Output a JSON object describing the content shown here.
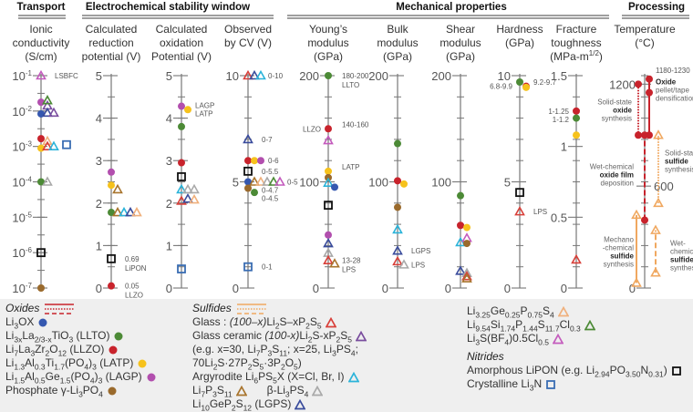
{
  "groups": [
    {
      "label": "Transport"
    },
    {
      "label": "Electrochemical stability window"
    },
    {
      "label": "Mechanical properties"
    },
    {
      "label": "Processing"
    }
  ],
  "materials": {
    "li3ox": {
      "shape": "circle",
      "color": "#3558b0"
    },
    "llto": {
      "shape": "circle",
      "color": "#4c8a36"
    },
    "llzo": {
      "shape": "circle",
      "color": "#c8232c"
    },
    "latp": {
      "shape": "circle",
      "color": "#f6c21c"
    },
    "lagp": {
      "shape": "circle",
      "color": "#b24fae"
    },
    "phosphate": {
      "shape": "circle",
      "color": "#9a6a2c"
    },
    "glass": {
      "shape": "triangle",
      "color": "#d8403a"
    },
    "glassceramic": {
      "shape": "triangle",
      "color": "#7a4d9e"
    },
    "argyrodite": {
      "shape": "triangle",
      "color": "#2ab3d9"
    },
    "li7p3s11": {
      "shape": "triangle",
      "color": "#a8742c"
    },
    "beta": {
      "shape": "triangle",
      "color": "#a9a9a9"
    },
    "lgps": {
      "shape": "triangle",
      "color": "#3a4c9c"
    },
    "ligeps": {
      "shape": "triangle",
      "color": "#f0b07c"
    },
    "lisipscl": {
      "shape": "triangle",
      "color": "#4c8a36"
    },
    "lsbfc": {
      "shape": "triangle",
      "color": "#c45bbd"
    },
    "lipon": {
      "shape": "square",
      "color": "#111111"
    },
    "li3n": {
      "shape": "square",
      "color": "#3a6db3"
    }
  },
  "chart_data": [
    {
      "type": "scatter",
      "title": "Ionic conductivity (S/cm)",
      "title_lines": [
        "Ionic",
        "conductivity",
        "(S/cm)"
      ],
      "scale": "log",
      "ylim": [
        -7,
        -1
      ],
      "tick_labels": [
        {
          "v": -1,
          "t": "10^-1"
        },
        {
          "v": -2,
          "t": "10^-2"
        },
        {
          "v": -3,
          "t": "10^-3"
        },
        {
          "v": -4,
          "t": "10^-4"
        },
        {
          "v": -5,
          "t": "10^-5"
        },
        {
          "v": -6,
          "t": "10^-6"
        },
        {
          "v": -7,
          "t": "10^-7"
        }
      ],
      "points": [
        {
          "m": "lsbfc",
          "v": -1.0,
          "label": "LSBFC"
        },
        {
          "m": "lagp",
          "v": -1.75
        },
        {
          "m": "glassceramic",
          "v": -1.85
        },
        {
          "m": "lisipscl",
          "v": -1.7
        },
        {
          "m": "li3ox",
          "v": -2.08
        },
        {
          "m": "lgps",
          "v": -2.05
        },
        {
          "m": "glassceramic",
          "v": -2.05
        },
        {
          "m": "llzo",
          "v": -2.78
        },
        {
          "m": "ligeps",
          "v": -2.85
        },
        {
          "m": "latp",
          "v": -3.05
        },
        {
          "m": "glass",
          "v": -3.0
        },
        {
          "m": "argyrodite",
          "v": -3.0
        },
        {
          "m": "li3n",
          "v": -2.95
        },
        {
          "m": "llto",
          "v": -4.0
        },
        {
          "m": "beta",
          "v": -4.0
        },
        {
          "m": "lipon",
          "v": -6.0
        },
        {
          "m": "phosphate",
          "v": -7.0
        }
      ]
    },
    {
      "type": "scatter",
      "title": "Calculated reduction potential (V)",
      "title_lines": [
        "Calculated",
        "reduction",
        "potential (V)"
      ],
      "ylim": [
        0,
        5
      ],
      "tick_labels": [
        {
          "v": 5,
          "t": "5"
        },
        {
          "v": 4,
          "t": "4"
        },
        {
          "v": 3,
          "t": "3"
        },
        {
          "v": 2,
          "t": "2"
        },
        {
          "v": 1,
          "t": "1"
        },
        {
          "v": 0,
          "t": "0"
        }
      ],
      "points": [
        {
          "m": "lagp",
          "v": 2.73
        },
        {
          "m": "latp",
          "v": 2.42
        },
        {
          "m": "li7p3s11",
          "v": 2.32
        },
        {
          "m": "llto",
          "v": 1.78
        },
        {
          "m": "li7p3s11",
          "v": 1.78
        },
        {
          "m": "argyrodite",
          "v": 1.78
        },
        {
          "m": "lgps",
          "v": 1.78
        },
        {
          "m": "ligeps",
          "v": 1.78
        },
        {
          "m": "lipon",
          "v": 0.69,
          "label": "0.69",
          "label2": "LiPON"
        },
        {
          "m": "llzo",
          "v": 0.05,
          "label": "0.05",
          "label2": "LLZO"
        }
      ]
    },
    {
      "type": "scatter",
      "title": "Calculated oxidation Potential (V)",
      "title_lines": [
        "Calculated",
        "oxidation",
        "Potential (V)"
      ],
      "ylim": [
        0,
        5
      ],
      "tick_labels": [
        {
          "v": 5,
          "t": "5"
        },
        {
          "v": 4,
          "t": "4"
        },
        {
          "v": 3,
          "t": "3"
        },
        {
          "v": 2,
          "t": "2"
        },
        {
          "v": 1,
          "t": "1"
        },
        {
          "v": 0,
          "t": "0"
        }
      ],
      "points": [
        {
          "m": "lagp",
          "v": 4.28,
          "label": "LAGP",
          "labeldy": -1
        },
        {
          "m": "latp",
          "v": 4.2,
          "label": "LATP",
          "labeldy": 1
        },
        {
          "m": "llto",
          "v": 3.8
        },
        {
          "m": "llzo",
          "v": 2.95
        },
        {
          "m": "lipon",
          "v": 2.62
        },
        {
          "m": "argyrodite",
          "v": 2.32
        },
        {
          "m": "beta",
          "v": 2.32
        },
        {
          "m": "beta",
          "v": 2.32
        },
        {
          "m": "glass",
          "v": 2.05
        },
        {
          "m": "lgps",
          "v": 2.1
        },
        {
          "m": "ligeps",
          "v": 2.08
        },
        {
          "m": "li3n",
          "v": 0.45
        }
      ]
    },
    {
      "type": "scatter",
      "title": "Observed by CV (V)",
      "title_lines": [
        "Observed",
        "by CV (V)"
      ],
      "ylim": [
        0,
        10
      ],
      "tick_labels": [
        {
          "v": 10,
          "t": "10"
        },
        {
          "v": 5,
          "t": "5"
        },
        {
          "v": 0,
          "t": "0"
        }
      ],
      "points": [
        {
          "m": "glass",
          "v": 10
        },
        {
          "m": "lgps",
          "v": 10
        },
        {
          "m": "argyrodite",
          "v": 10,
          "label": "0-10"
        },
        {
          "m": "lgps",
          "v": 7,
          "label": "0-7"
        },
        {
          "m": "llzo",
          "v": 6
        },
        {
          "m": "latp",
          "v": 6
        },
        {
          "m": "lagp",
          "v": 6,
          "label": "0-6"
        },
        {
          "m": "lipon",
          "v": 5.5,
          "label": "0-5.5"
        },
        {
          "m": "li3ox",
          "v": 5
        },
        {
          "m": "li7p3s11",
          "v": 5
        },
        {
          "m": "ligeps",
          "v": 5
        },
        {
          "m": "beta",
          "v": 5
        },
        {
          "m": "lisipscl",
          "v": 5
        },
        {
          "m": "lsbfc",
          "v": 5,
          "label": "0-5"
        },
        {
          "m": "phosphate",
          "v": 4.7,
          "label": "0-4.7"
        },
        {
          "m": "llto",
          "v": 4.5,
          "label": "0-4.5"
        },
        {
          "m": "li3n",
          "v": 1,
          "label": "0-1"
        }
      ]
    },
    {
      "type": "scatter",
      "title": "Young's modulus (GPa)",
      "title_lines": [
        "Young’s",
        "modulus",
        "(GPa)"
      ],
      "ylim": [
        0,
        200
      ],
      "tick_labels": [
        {
          "v": 200,
          "t": "200"
        },
        {
          "v": 100,
          "t": "100"
        },
        {
          "v": 0,
          "t": "0"
        }
      ],
      "points": [
        {
          "m": "llto",
          "v": 200,
          "label": "180-200",
          "label2": "LLTO"
        },
        {
          "m": "llzo",
          "v": 150,
          "label": "140-160",
          "labeldy": -5,
          "label_left": "LLZO"
        },
        {
          "m": "lsbfc",
          "v": 139
        },
        {
          "m": "latp",
          "v": 110,
          "label": "LATP",
          "labeldy": -5
        },
        {
          "m": "phosphate",
          "v": 104
        },
        {
          "m": "argyrodite",
          "v": 99
        },
        {
          "m": "li3ox",
          "v": 95
        },
        {
          "m": "lipon",
          "v": 78
        },
        {
          "m": "lagp",
          "v": 50
        },
        {
          "m": "lgps",
          "v": 42
        },
        {
          "m": "beta",
          "v": 33
        },
        {
          "m": "glass",
          "v": 26,
          "label": "13-28",
          "label2": "LPS"
        },
        {
          "m": "li7p3s11",
          "v": 23
        }
      ]
    },
    {
      "type": "scatter",
      "title": "Bulk modulus (GPa)",
      "title_lines": [
        "Bulk",
        "modulus",
        "(GPa)"
      ],
      "ylim": [
        0,
        200
      ],
      "tick_labels": [
        {
          "v": 200,
          "t": "200"
        },
        {
          "v": 100,
          "t": "100"
        },
        {
          "v": 0,
          "t": "0"
        }
      ],
      "points": [
        {
          "m": "llto",
          "v": 136
        },
        {
          "m": "llzo",
          "v": 101
        },
        {
          "m": "latp",
          "v": 98
        },
        {
          "m": "phosphate",
          "v": 76
        },
        {
          "m": "argyrodite",
          "v": 55
        },
        {
          "m": "lgps",
          "v": 35,
          "label": "LGPS"
        },
        {
          "m": "glass",
          "v": 25
        },
        {
          "m": "beta",
          "v": 22,
          "label": "LPS"
        }
      ]
    },
    {
      "type": "scatter",
      "title": "Shear modulus (GPa)",
      "title_lines": [
        "Shear",
        "modulus",
        "(GPa)"
      ],
      "ylim": [
        0,
        200
      ],
      "tick_labels": [
        {
          "v": 200,
          "t": "200"
        },
        {
          "v": 100,
          "t": "100"
        },
        {
          "v": 0,
          "t": "0"
        }
      ],
      "points": [
        {
          "m": "llto",
          "v": 87
        },
        {
          "m": "llzo",
          "v": 59
        },
        {
          "m": "latp",
          "v": 57
        },
        {
          "m": "argyrodite",
          "v": 43
        },
        {
          "m": "lsbfc",
          "v": 47
        },
        {
          "m": "phosphate",
          "v": 42
        },
        {
          "m": "lgps",
          "v": 16
        },
        {
          "m": "beta",
          "v": 14
        },
        {
          "m": "glass",
          "v": 11
        },
        {
          "m": "li7p3s11",
          "v": 9
        }
      ]
    },
    {
      "type": "scatter",
      "title": "Hardness (GPa)",
      "title_lines": [
        "Hardness",
        "(GPa)"
      ],
      "ylim": [
        0,
        10
      ],
      "tick_labels": [
        {
          "v": 10,
          "t": "10"
        },
        {
          "v": 5,
          "t": "5"
        },
        {
          "v": 0,
          "t": "0"
        }
      ],
      "points": [
        {
          "m": "llto",
          "v": 9.7,
          "label": "9.2-9.7"
        },
        {
          "m": "llzo",
          "v": 9.5,
          "label_left": "6.8-9.9"
        },
        {
          "m": "latp",
          "v": 9.45
        },
        {
          "m": "lipon",
          "v": 4.5
        },
        {
          "m": "glass",
          "v": 3.6,
          "label": "LPS"
        }
      ]
    },
    {
      "type": "scatter",
      "title": "Fracture toughness (MPa-m^1/2)",
      "title_lines": [
        "Fracture",
        "toughness",
        "(MPa-m^1/2)"
      ],
      "ylim": [
        0,
        1.5
      ],
      "tick_labels": [
        {
          "v": 1.5,
          "t": "1.5"
        },
        {
          "v": 1,
          "t": "1"
        },
        {
          "v": 0.5,
          "t": "0.5"
        },
        {
          "v": 0,
          "t": "0"
        }
      ],
      "points": [
        {
          "m": "llzo",
          "v": 1.25,
          "label_left": "1-1.25"
        },
        {
          "m": "llto",
          "v": 1.2,
          "label_left": "1-1.2"
        },
        {
          "m": "latp",
          "v": 1.08
        },
        {
          "m": "glass",
          "v": 0.2
        }
      ]
    },
    {
      "type": "range",
      "title": "Temperature (°C)",
      "title_lines": [
        "Temperature",
        "(°C)"
      ],
      "ylim": [
        0,
        1250
      ],
      "tick_labels": [
        {
          "v": 1200,
          "t": "1200"
        },
        {
          "v": 600,
          "t": "600",
          "side": "right"
        },
        {
          "v": 0,
          "t": "0"
        }
      ],
      "annotation": "1180-1230",
      "ranges": [
        {
          "family": "oxide",
          "style": "dotted",
          "from": 900,
          "to": 1200,
          "lines": [
            "Solid-state",
            "*oxide",
            "synthesis"
          ]
        },
        {
          "family": "oxide",
          "style": "solid",
          "from": 900,
          "to": 1230,
          "mid": 1150,
          "lines": [
            "*Oxide",
            "pellet/tape",
            "densification"
          ]
        },
        {
          "family": "oxide",
          "style": "dashed",
          "from": 400,
          "to": 900,
          "lines": [
            "Wet-chemical",
            "*oxide film",
            "deposition"
          ]
        },
        {
          "family": "sulfide",
          "style": "dotted",
          "from": 500,
          "to": 900,
          "lines": [
            "Solid-state",
            "*sulfide",
            "synthesis"
          ]
        },
        {
          "family": "sulfide",
          "style": "solid",
          "from": 30,
          "to": 430,
          "lines": [
            "Mechano",
            "-chemical",
            "*sulfide",
            "synthesis"
          ]
        },
        {
          "family": "sulfide",
          "style": "dashed",
          "from": 90,
          "to": 340,
          "lines": [
            "Wet-",
            "chemical",
            "*sulfide",
            "synthesis"
          ]
        }
      ],
      "family_colors": {
        "oxide": "#c8232c",
        "sulfide": "#f0a860"
      }
    }
  ],
  "legend": {
    "oxides": {
      "title": "Oxides",
      "items": [
        {
          "m": "li3ox",
          "text": "Li_{3}OX"
        },
        {
          "m": "llto",
          "text": "Li_{3x}La_{2/3-x}TiO_{3} (LLTO)"
        },
        {
          "m": "llzo",
          "text": "Li_{7}La_{3}Zr_{2}O_{12} (LLZO)"
        },
        {
          "m": "latp",
          "text": "Li_{1.3}Al_{0.3}Ti_{1.7}(PO_{4})_{3} (LATP)"
        },
        {
          "m": "lagp",
          "text": "Li_{1.5}Al_{0.5}Ge_{1.5}(PO_{4})_{3} (LAGP)"
        },
        {
          "m": "phosphate",
          "text": "Phosphate γ-Li_{3}PO_{4}"
        }
      ]
    },
    "sulfides": {
      "title": "Sulfides",
      "items": [
        {
          "m": "glass",
          "text": "Glass : *(100–x)*Li_{2}S–xP_{2}S_{5}"
        },
        {
          "m": "glassceramic",
          "text": "Glass ceramic *(100-x)*Li_{2}S-xP_{2}S_{5}"
        },
        {
          "m": "",
          "text": "(e.g. x=30, Li_{7}P_{3}S_{11}; x=25, Li_{3}PS_{4}; 70Li_{2}S·27P_{2}S_{5}·3P_{2}O_{5})"
        },
        {
          "m": "argyrodite",
          "text": "Argyrodite Li_{6}PS_{5}X (X=Cl, Br, I)"
        },
        {
          "m": "li7p3s11",
          "text": "Li_{7}P_{3}S_{11}",
          "m2": "beta",
          "text2": "β-Li_{3}PS_{4}"
        },
        {
          "m": "lgps",
          "text": "Li_{10}GeP_{2}S_{12} (LGPS)"
        }
      ]
    },
    "others": {
      "items": [
        {
          "m": "ligeps",
          "text": "Li_{3.25}Ge_{0.25}P_{0.75}S_{4}"
        },
        {
          "m": "lisipscl",
          "text": "Li_{9.54}Si_{1.74}P_{1.44}S_{11.7}Cl_{0.3}"
        },
        {
          "m": "lsbfc",
          "text": "Li_{3}S(BF_{4})0.5Cl_{0.5}"
        }
      ]
    },
    "nitrides": {
      "title": "Nitrides",
      "items": [
        {
          "m": "lipon",
          "text": "Amorphous LiPON (e.g. Li_{2.94}PO_{3.50}N_{0.31})"
        },
        {
          "m": "li3n",
          "text": "Crystalline Li_{3}N"
        }
      ]
    }
  }
}
